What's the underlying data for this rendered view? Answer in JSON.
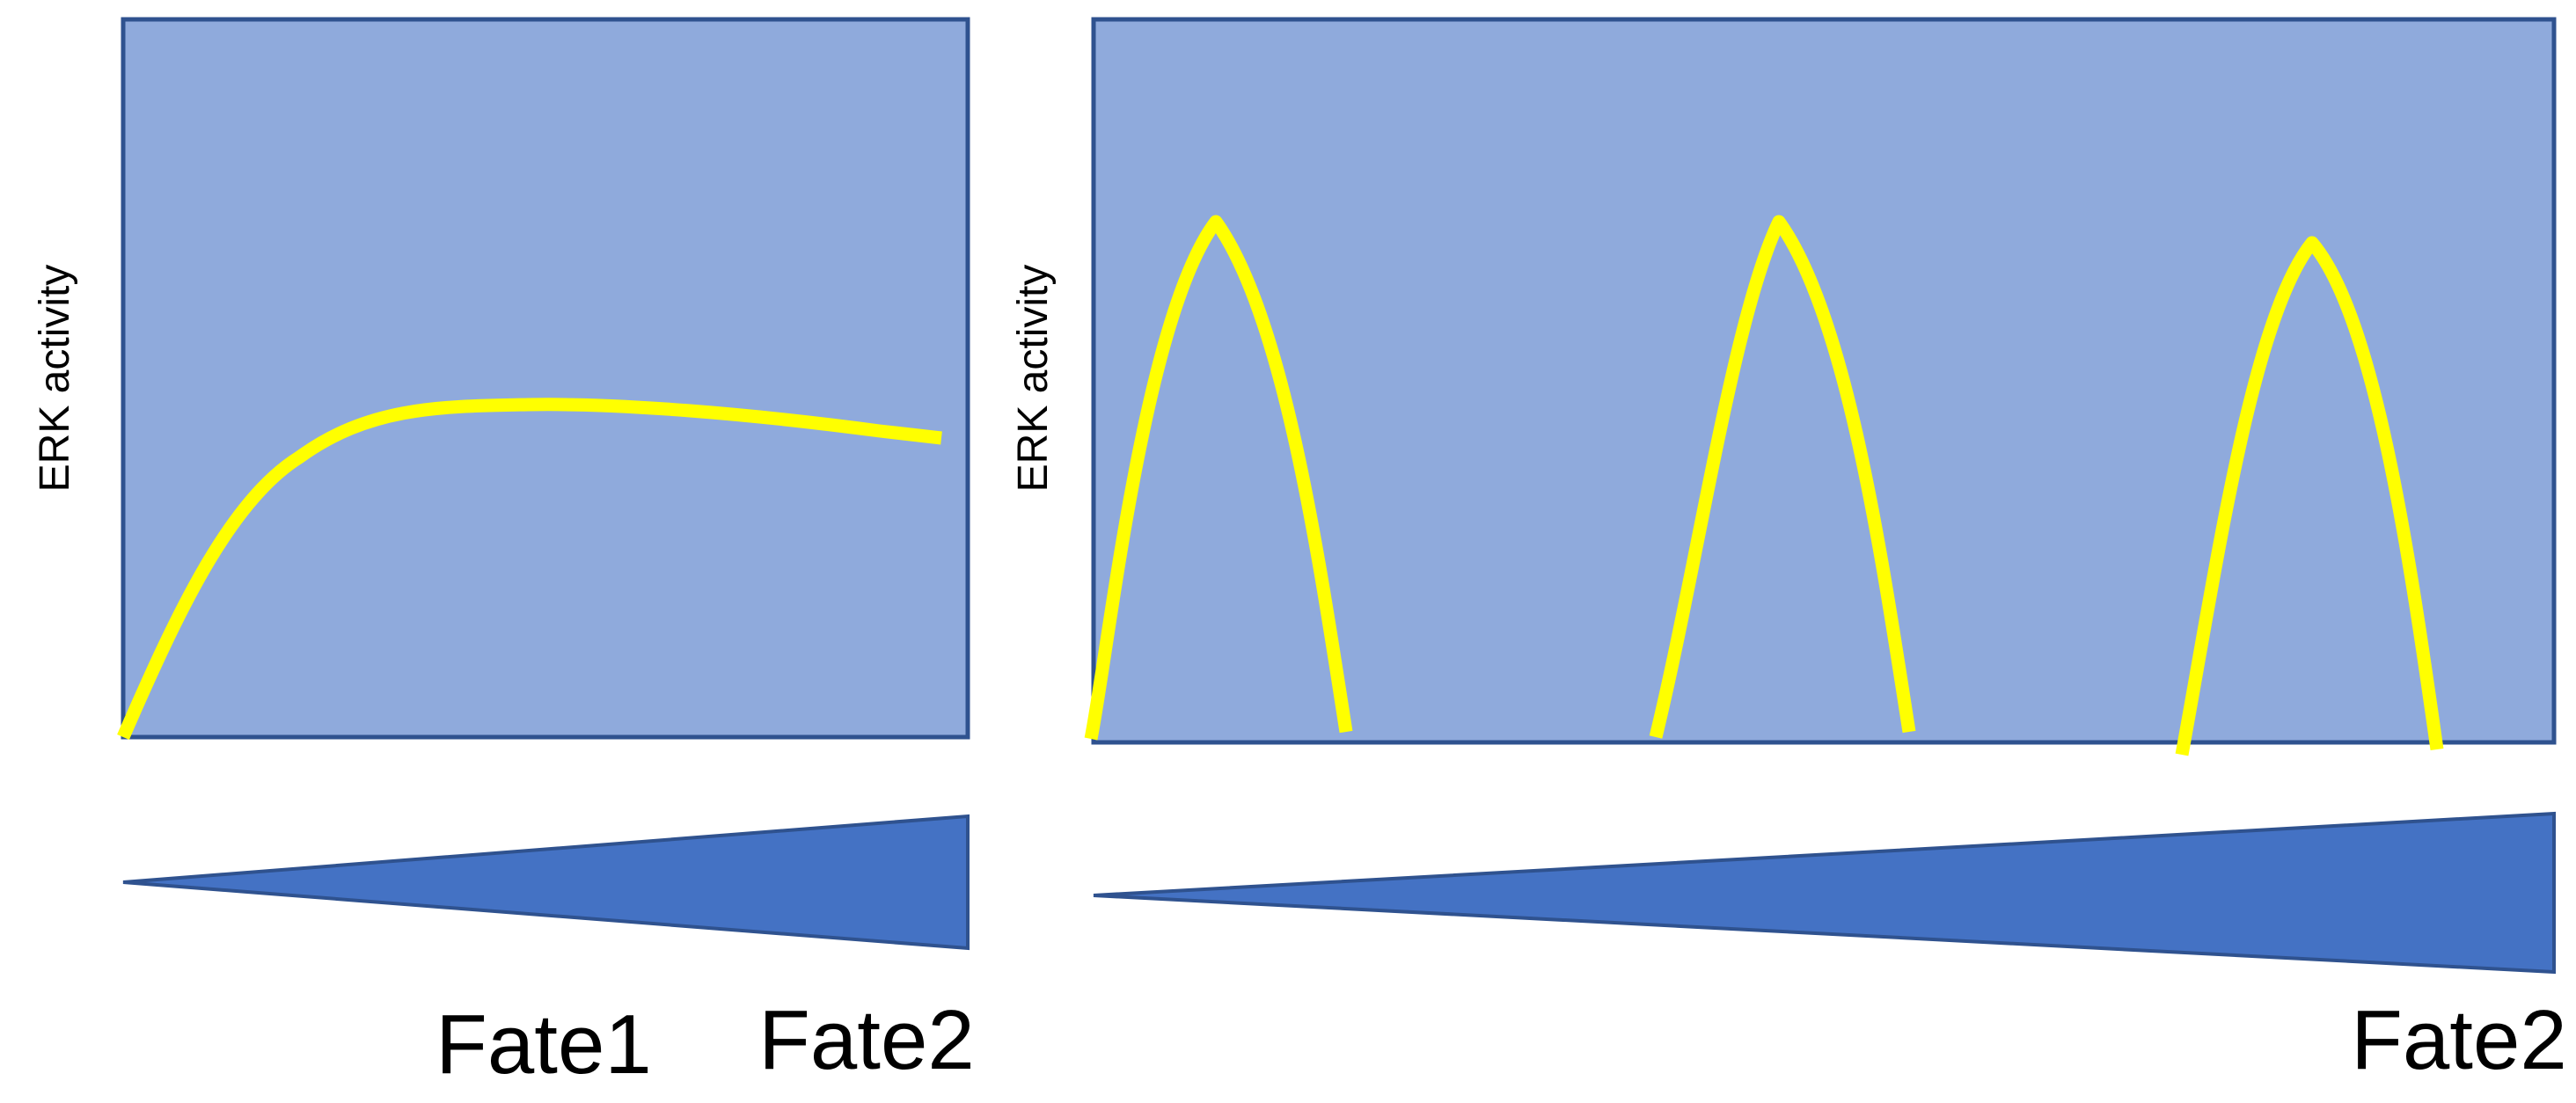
{
  "colors": {
    "panel_fill": "#8faadc",
    "panel_border": "#2f528f",
    "curve": "#ffff00",
    "wedge_fill": "#4472c4",
    "wedge_border": "#2f528f",
    "text": "#000000"
  },
  "left_panel": {
    "ylabel": "ERK activity",
    "signal_shape": "sustained",
    "fate_labels": [
      "Fate1",
      "Fate2"
    ]
  },
  "right_panel": {
    "ylabel": "ERK activity",
    "signal_shape": "pulsatile",
    "pulse_count": 3,
    "fate_labels": [
      "Fate2"
    ]
  }
}
